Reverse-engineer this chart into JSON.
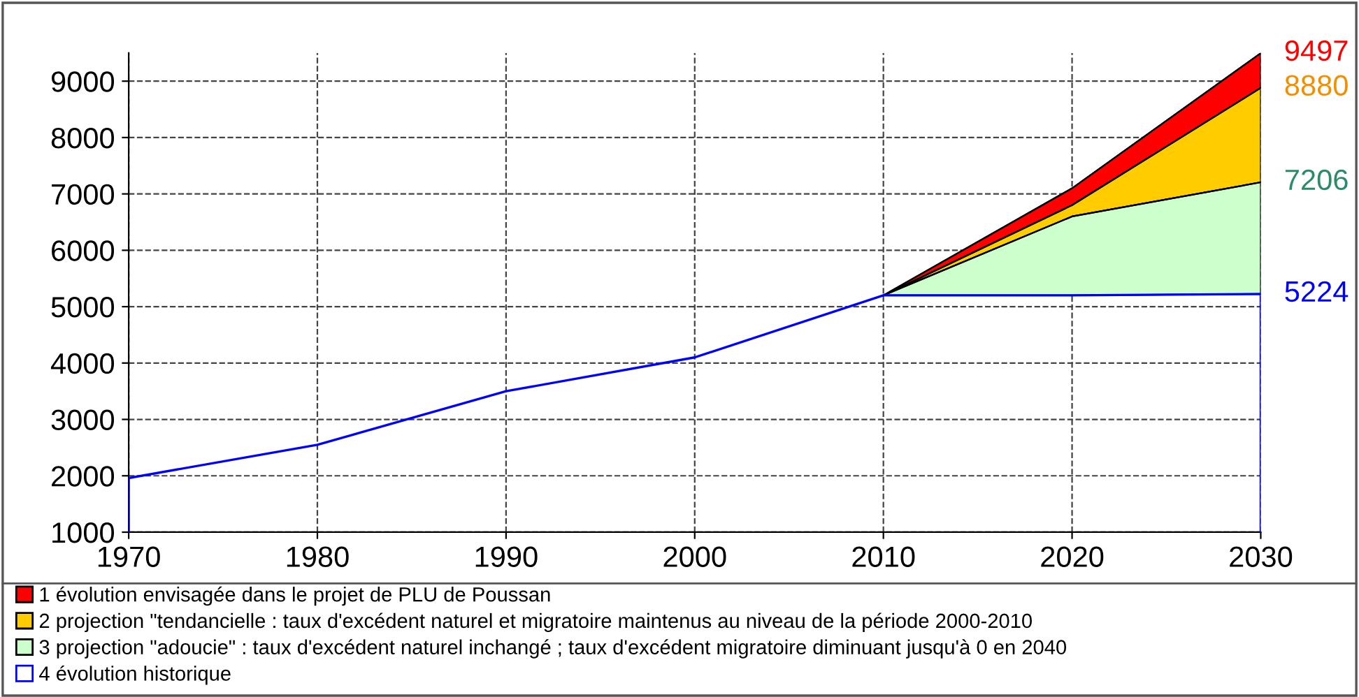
{
  "chart_data": {
    "type": "area",
    "x": [
      1970,
      1980,
      1990,
      2000,
      2010,
      2020,
      2030
    ],
    "series": [
      {
        "name": "1 évolution envisagée dans le projet de PLU de Poussan",
        "color": "#ff0000",
        "x": [
          2010,
          2020,
          2030
        ],
        "values": [
          5200,
          7100,
          9497
        ],
        "value_labels": [
          null,
          null,
          "9497"
        ]
      },
      {
        "name": "2 projection \"tendancielle : taux d'excédent naturel et migratoire maintenus au niveau de la période 2000-2010",
        "color": "#ffcc00",
        "x": [
          2010,
          2020,
          2030
        ],
        "values": [
          5200,
          6800,
          8880
        ],
        "value_labels": [
          null,
          null,
          "8880"
        ]
      },
      {
        "name": "3 projection \"adoucie\" : taux d'excédent naturel inchangé ; taux d'excédent migratoire diminuant jusqu'à 0 en 2040",
        "color": "#ccffcc",
        "x": [
          2010,
          2020,
          2030
        ],
        "values": [
          5200,
          6600,
          7206
        ],
        "value_labels": [
          null,
          null,
          "7206"
        ]
      },
      {
        "name": "4 évolution historique",
        "type": "line",
        "color": "#0000ff",
        "values": [
          1960,
          2550,
          3500,
          4100,
          5200,
          5200,
          5224
        ],
        "value_labels": [
          null,
          null,
          null,
          null,
          null,
          null,
          "5224"
        ]
      }
    ],
    "xlim": [
      1970,
      2030
    ],
    "ylim": [
      1000,
      9500
    ],
    "xticks": [
      1970,
      1980,
      1990,
      2000,
      2010,
      2020,
      2030
    ],
    "yticks": [
      1000,
      2000,
      3000,
      4000,
      5000,
      6000,
      7000,
      8000,
      9000
    ],
    "grid": true,
    "legend": "bottom",
    "line_style": "solid",
    "marker": "none"
  }
}
